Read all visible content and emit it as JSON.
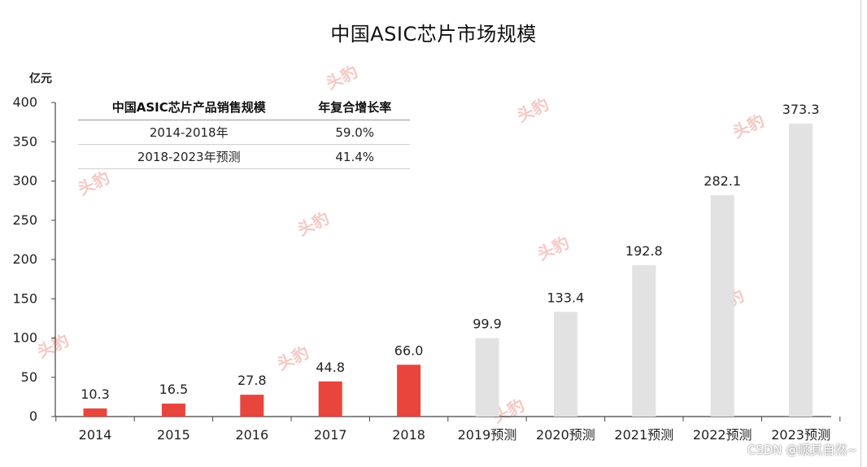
{
  "chart_data": {
    "type": "bar",
    "title": "中国ASIC芯片市场规模",
    "ylabel": "亿元",
    "xlabel": "",
    "ylim": [
      0,
      400
    ],
    "yticks": [
      0,
      50,
      100,
      150,
      200,
      250,
      300,
      350,
      400
    ],
    "categories": [
      "2014",
      "2015",
      "2016",
      "2017",
      "2018",
      "2019预测",
      "2020预测",
      "2021预测",
      "2022预测",
      "2023预测"
    ],
    "values": [
      10.3,
      16.5,
      27.8,
      44.8,
      66.0,
      99.9,
      133.4,
      192.8,
      282.1,
      373.3
    ],
    "value_labels": [
      "10.3",
      "16.5",
      "27.8",
      "44.8",
      "66.0",
      "99.9",
      "133.4",
      "192.8",
      "282.1",
      "373.3"
    ],
    "actual_color": "#e8453c",
    "forecast_color": "#e2e2e2",
    "grid": false
  },
  "table": {
    "headers": [
      "中国ASIC芯片产品销售规模",
      "年复合增长率"
    ],
    "rows": [
      [
        "2014-2018年",
        "59.0%"
      ],
      [
        "2018-2023年预测",
        "41.4%"
      ]
    ]
  },
  "watermark": {
    "logo_text": "头豹",
    "credit": "CSDN @顺其自然~"
  }
}
